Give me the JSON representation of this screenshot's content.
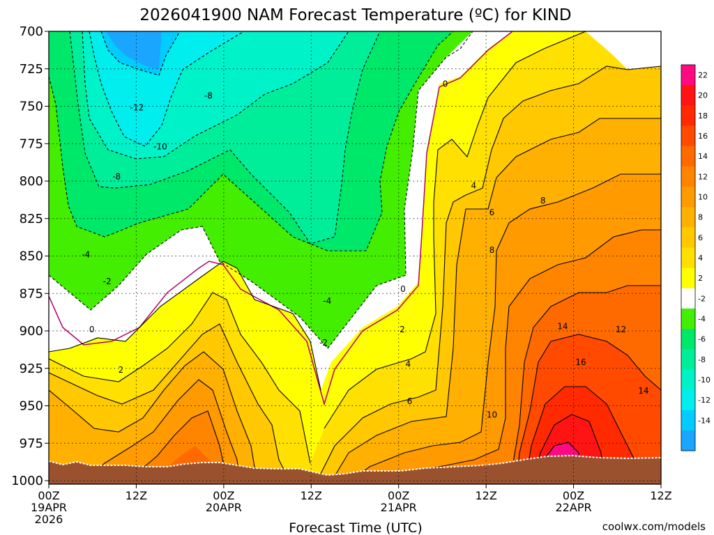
{
  "chart_data": {
    "type": "contour",
    "title": "2026041900 NAM Forecast Temperature (ºC) for KIND",
    "xlabel": "Forecast Time (UTC)",
    "ylabel": "",
    "y_ticks": [
      "700",
      "725",
      "750",
      "775",
      "800",
      "825",
      "850",
      "875",
      "900",
      "925",
      "950",
      "975",
      "1000"
    ],
    "y_range": [
      1000,
      700
    ],
    "x_ticks": [
      {
        "line1": "00Z",
        "line2": "19APR",
        "line3": "2026"
      },
      {
        "line1": "12Z",
        "line2": "",
        "line3": ""
      },
      {
        "line1": "00Z",
        "line2": "20APR",
        "line3": ""
      },
      {
        "line1": "12Z",
        "line2": "",
        "line3": ""
      },
      {
        "line1": "00Z",
        "line2": "21APR",
        "line3": ""
      },
      {
        "line1": "12Z",
        "line2": "",
        "line3": ""
      },
      {
        "line1": "00Z",
        "line2": "22APR",
        "line3": ""
      },
      {
        "line1": "12Z",
        "line2": "",
        "line3": ""
      }
    ],
    "x_range_hours": [
      0,
      84
    ],
    "colorbar_levels": [
      "22",
      "20",
      "18",
      "16",
      "14",
      "12",
      "10",
      "8",
      "6",
      "4",
      "2",
      "-2",
      "-4",
      "-6",
      "-8",
      "-10",
      "-12",
      "-14"
    ],
    "colorbar_colors": [
      "#ff0a80",
      "#ff1414",
      "#ff2a00",
      "#ff4a00",
      "#ff6a00",
      "#ff8500",
      "#ff9a00",
      "#ffb000",
      "#ffc800",
      "#ffe000",
      "#ffff00",
      "#ffffff",
      "#44ee00",
      "#00e86a",
      "#00ee9a",
      "#00f2c8",
      "#00eeee",
      "#00ccff",
      "#1aa6ff"
    ],
    "contour_labels": [
      {
        "text": "-12",
        "hour": 12.1,
        "p": 751
      },
      {
        "text": "-10",
        "hour": 15.3,
        "p": 777
      },
      {
        "text": "-8",
        "hour": 21.9,
        "p": 743
      },
      {
        "text": "-8",
        "hour": 9.3,
        "p": 797
      },
      {
        "text": "-4",
        "hour": 5.1,
        "p": 849
      },
      {
        "text": "-2",
        "hour": 8.0,
        "p": 867
      },
      {
        "text": "0",
        "hour": 5.9,
        "p": 899
      },
      {
        "text": "2",
        "hour": 9.9,
        "p": 926
      },
      {
        "text": "-4",
        "hour": 38.2,
        "p": 880
      },
      {
        "text": "-2",
        "hour": 37.7,
        "p": 908
      },
      {
        "text": "0",
        "hour": 54.4,
        "p": 735
      },
      {
        "text": "0",
        "hour": 48.6,
        "p": 872
      },
      {
        "text": "2",
        "hour": 48.5,
        "p": 899
      },
      {
        "text": "4",
        "hour": 49.3,
        "p": 922
      },
      {
        "text": "6",
        "hour": 49.5,
        "p": 947
      },
      {
        "text": "4",
        "hour": 58.3,
        "p": 803
      },
      {
        "text": "6",
        "hour": 60.8,
        "p": 821
      },
      {
        "text": "8",
        "hour": 60.8,
        "p": 846
      },
      {
        "text": "8",
        "hour": 67.8,
        "p": 813
      },
      {
        "text": "10",
        "hour": 60.8,
        "p": 956
      },
      {
        "text": "14",
        "hour": 70.5,
        "p": 897
      },
      {
        "text": "12",
        "hour": 78.5,
        "p": 899
      },
      {
        "text": "16",
        "hour": 73.0,
        "p": 921
      },
      {
        "text": "14",
        "hour": 81.6,
        "p": 940
      }
    ]
  },
  "credit": "coolwx.com/models"
}
